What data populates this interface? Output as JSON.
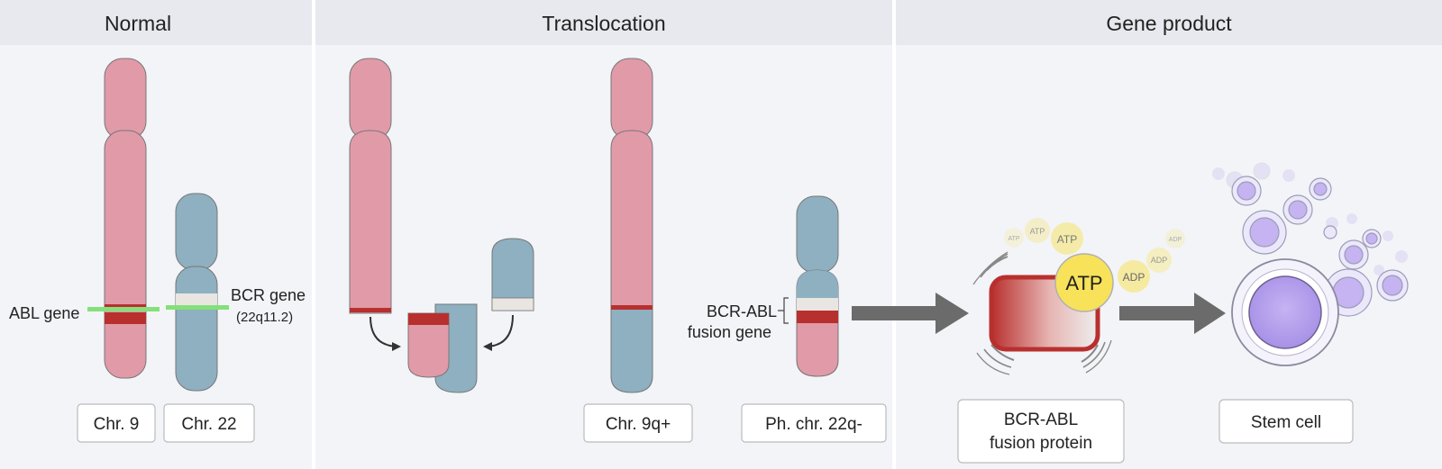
{
  "panels": {
    "normal": {
      "title": "Normal"
    },
    "translocation": {
      "title": "Translocation"
    },
    "gene_product": {
      "title": "Gene product"
    }
  },
  "labels": {
    "abl_gene": "ABL gene",
    "bcr_gene": "BCR gene",
    "bcr_band": "(22q11.2)",
    "fusion_gene_line1": "BCR-ABL",
    "fusion_gene_line2": "fusion gene",
    "atp_main": "ATP",
    "atp_small_1": "ATP",
    "atp_small_2": "ATP",
    "atp_small_3": "ATP",
    "adp_1": "ADP",
    "adp_2": "ADP",
    "adp_3": "ADP"
  },
  "boxes": {
    "chr9": "Chr. 9",
    "chr22": "Chr. 22",
    "chr9q": "Chr. 9q+",
    "ph_chr": "Ph. chr. 22q-",
    "fusion_protein_line1": "BCR-ABL",
    "fusion_protein_line2": "fusion protein",
    "stem_cell": "Stem cell"
  },
  "colors": {
    "chr9_pink": "#e19aa8",
    "chr22_blue": "#8eb0c0",
    "band_red": "#b8302e",
    "band_light": "#e9e6e2",
    "marker_green": "#84e07a",
    "panel_bg": "#f3f4f8",
    "header_bg": "#e8e9ee",
    "arrow_gray": "#6b6b6b",
    "atp_yellow": "#f7e259",
    "cell_purple": "#b9a5ea"
  }
}
